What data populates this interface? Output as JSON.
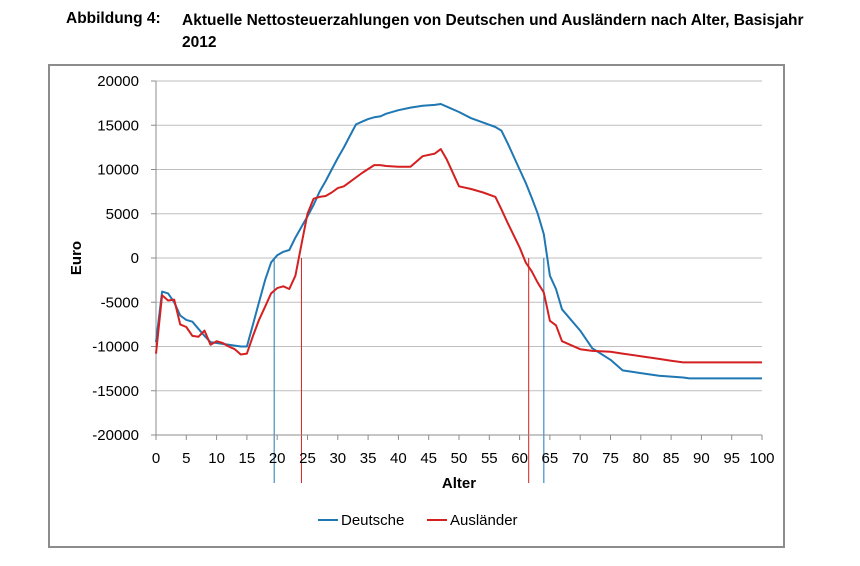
{
  "figure": {
    "label": "Abbildung 4:",
    "title": "Aktuelle Nettosteuerzahlungen von Deutschen und Ausländern nach Alter, Basisjahr 2012"
  },
  "colors": {
    "deutsche": "#1f77b4",
    "auslaender": "#d42020",
    "grid": "#bfbfbf",
    "axis": "#8c8c8c",
    "frame": "#8c8c8c"
  },
  "chart_data": {
    "type": "line",
    "title": "",
    "xlabel": "Alter",
    "ylabel": "Euro",
    "xlim": [
      0,
      100
    ],
    "ylim": [
      -20000,
      20000
    ],
    "xticks": [
      0,
      5,
      10,
      15,
      20,
      25,
      30,
      35,
      40,
      45,
      50,
      55,
      60,
      65,
      70,
      75,
      80,
      85,
      90,
      95,
      100
    ],
    "yticks": [
      20000,
      15000,
      10000,
      5000,
      0,
      -5000,
      -10000,
      -15000,
      -20000
    ],
    "grid": "horizontal",
    "legend_position": "bottom",
    "series": [
      {
        "name": "Deutsche",
        "color": "#1f77b4",
        "x": [
          0,
          1,
          2,
          3,
          4,
          5,
          6,
          7,
          8,
          9,
          10,
          12,
          14,
          15,
          16,
          17,
          18,
          19,
          20,
          21,
          22,
          23,
          24,
          25,
          26,
          27,
          28,
          29,
          30,
          31,
          32,
          33,
          34,
          35,
          36,
          37,
          38,
          40,
          42,
          44,
          46,
          47,
          48,
          50,
          52,
          54,
          56,
          57,
          58,
          60,
          61,
          62,
          63,
          64,
          65,
          66,
          67,
          70,
          72,
          75,
          77,
          80,
          83,
          85,
          87,
          88,
          90,
          95,
          100
        ],
        "y": [
          -9500,
          -3800,
          -4000,
          -5000,
          -6500,
          -7000,
          -7200,
          -8000,
          -8800,
          -9500,
          -9600,
          -9800,
          -10000,
          -10000,
          -7500,
          -5000,
          -2500,
          -500,
          300,
          700,
          900,
          2300,
          3500,
          4700,
          6000,
          7500,
          8700,
          10000,
          11300,
          12500,
          13800,
          15100,
          15400,
          15700,
          15900,
          16000,
          16300,
          16700,
          17000,
          17200,
          17300,
          17400,
          17100,
          16500,
          15800,
          15300,
          14800,
          14400,
          13000,
          10000,
          8500,
          6800,
          5000,
          2700,
          -2000,
          -3500,
          -5800,
          -8200,
          -10200,
          -11500,
          -12700,
          -13000,
          -13300,
          -13400,
          -13500,
          -13600,
          -13600,
          -13600,
          -13600
        ]
      },
      {
        "name": "Ausländer",
        "color": "#d42020",
        "x": [
          0,
          1,
          2,
          3,
          4,
          5,
          6,
          7,
          8,
          9,
          10,
          11,
          12,
          13,
          14,
          15,
          16,
          17,
          18,
          19,
          20,
          21,
          22,
          23,
          24,
          25,
          26,
          27,
          28,
          29,
          30,
          31,
          32,
          34,
          36,
          37,
          38,
          40,
          42,
          44,
          46,
          47,
          48,
          50,
          52,
          54,
          56,
          57,
          58,
          60,
          61,
          62,
          63,
          64,
          65,
          66,
          67,
          70,
          72,
          75,
          77,
          80,
          83,
          85,
          87,
          88,
          90,
          95,
          100
        ],
        "y": [
          -10800,
          -4200,
          -4800,
          -4700,
          -7500,
          -7800,
          -8800,
          -8900,
          -8200,
          -9800,
          -9400,
          -9600,
          -10000,
          -10300,
          -10900,
          -10800,
          -8800,
          -7000,
          -5500,
          -4000,
          -3400,
          -3200,
          -3500,
          -2000,
          1500,
          5000,
          6700,
          6900,
          7000,
          7400,
          7900,
          8100,
          8600,
          9600,
          10500,
          10500,
          10400,
          10300,
          10300,
          11500,
          11800,
          12300,
          11100,
          8100,
          7800,
          7400,
          6900,
          5500,
          4000,
          1200,
          -500,
          -1500,
          -2800,
          -3900,
          -7100,
          -7600,
          -9400,
          -10300,
          -10500,
          -10600,
          -10800,
          -11100,
          -11400,
          -11600,
          -11800,
          -11800,
          -11800,
          -11800,
          -11800
        ]
      }
    ],
    "reference_lines": [
      {
        "x": 19.5,
        "color": "#1f77b4",
        "series": "Deutsche"
      },
      {
        "x": 24,
        "color": "#d42020",
        "series": "Ausländer"
      },
      {
        "x": 61.5,
        "color": "#d42020",
        "series": "Ausländer"
      },
      {
        "x": 64,
        "color": "#1f77b4",
        "series": "Deutsche"
      }
    ]
  }
}
